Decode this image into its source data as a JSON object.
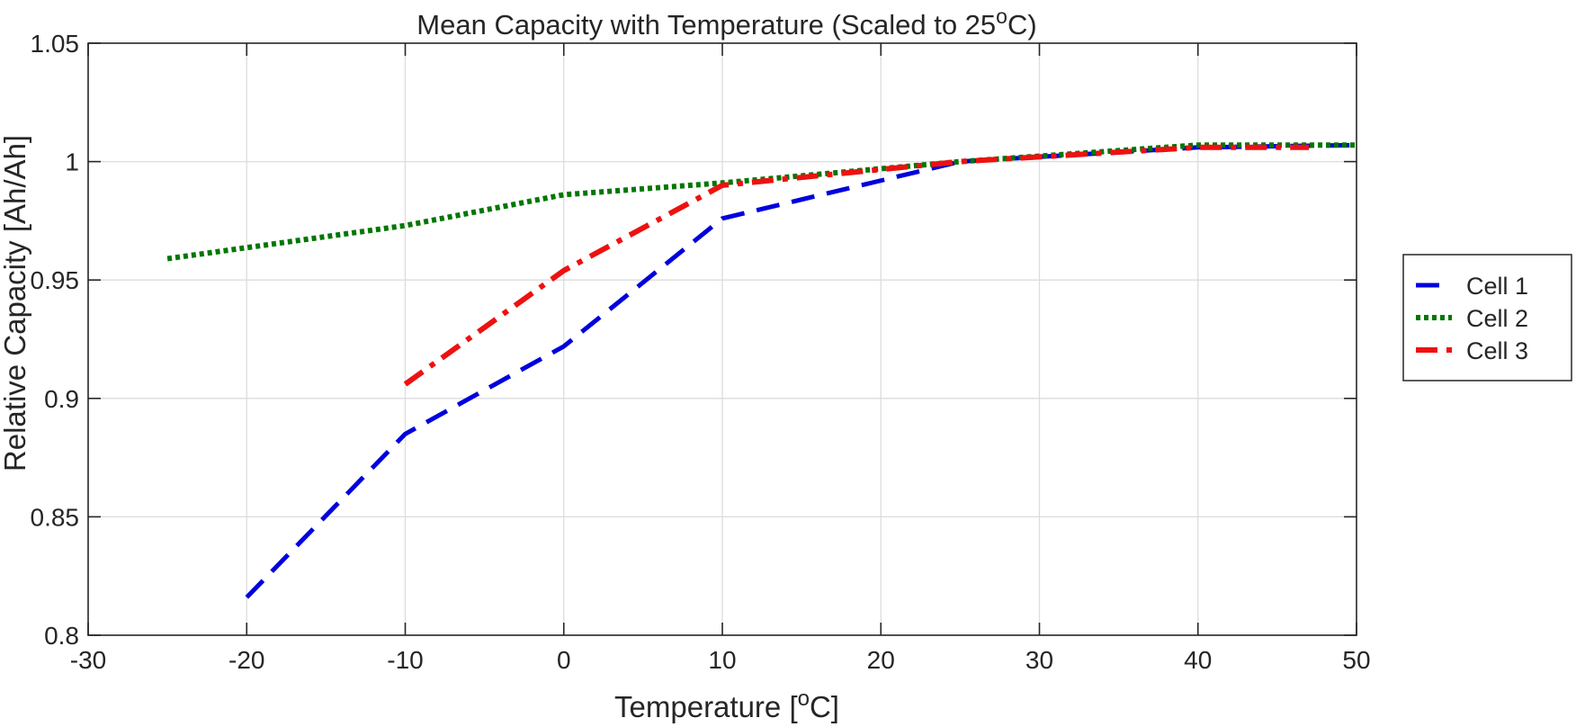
{
  "chart_data": {
    "type": "line",
    "title": {
      "text": "Mean Capacity with Temperature (Scaled to 25",
      "sup": "o",
      "suffix": "C)"
    },
    "xlabel": {
      "text": "Temperature [",
      "sup": "o",
      "suffix": "C]"
    },
    "ylabel": "Relative Capacity [Ah/Ah]",
    "xlim": [
      -30,
      50
    ],
    "ylim": [
      0.8,
      1.05
    ],
    "xticks": [
      -30,
      -20,
      -10,
      0,
      10,
      20,
      30,
      40,
      50
    ],
    "yticks": [
      0.8,
      0.85,
      0.9,
      0.95,
      1,
      1.05
    ],
    "xtick_labels": [
      "-30",
      "-20",
      "-10",
      "0",
      "10",
      "20",
      "30",
      "40",
      "50"
    ],
    "ytick_labels": [
      "0.8",
      "0.85",
      "0.9",
      "0.95",
      "1",
      "1.05"
    ],
    "grid": true,
    "legend_position": "outside-right",
    "series": [
      {
        "name": "Cell 1",
        "color": "#0000dd",
        "style": "dashed",
        "x": [
          -20,
          -10,
          0,
          10,
          25,
          40,
          50
        ],
        "y": [
          0.816,
          0.885,
          0.922,
          0.976,
          1.0,
          1.006,
          1.007
        ]
      },
      {
        "name": "Cell 2",
        "color": "#007700",
        "style": "dotted",
        "x": [
          -25,
          -10,
          0,
          10,
          25,
          40,
          50
        ],
        "y": [
          0.959,
          0.973,
          0.986,
          0.991,
          1.0,
          1.007,
          1.007
        ]
      },
      {
        "name": "Cell 3",
        "color": "#ee1111",
        "style": "dash-dot",
        "x": [
          -10,
          0,
          10,
          25,
          40,
          47
        ],
        "y": [
          0.906,
          0.954,
          0.99,
          1.0,
          1.006,
          1.006
        ]
      }
    ]
  }
}
